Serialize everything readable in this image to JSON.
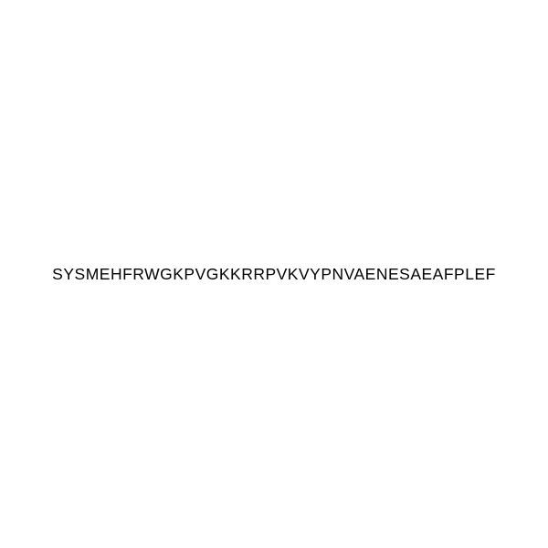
{
  "sequence": {
    "text": "SYSMEHFRWGKPVGKKRRPVKVYPNVAENESAEAFPLEF",
    "fontsize": 17.5,
    "letter_spacing": 0.5,
    "color": "#000000",
    "background_color": "#ffffff",
    "font_family": "Arial, Helvetica, sans-serif"
  }
}
